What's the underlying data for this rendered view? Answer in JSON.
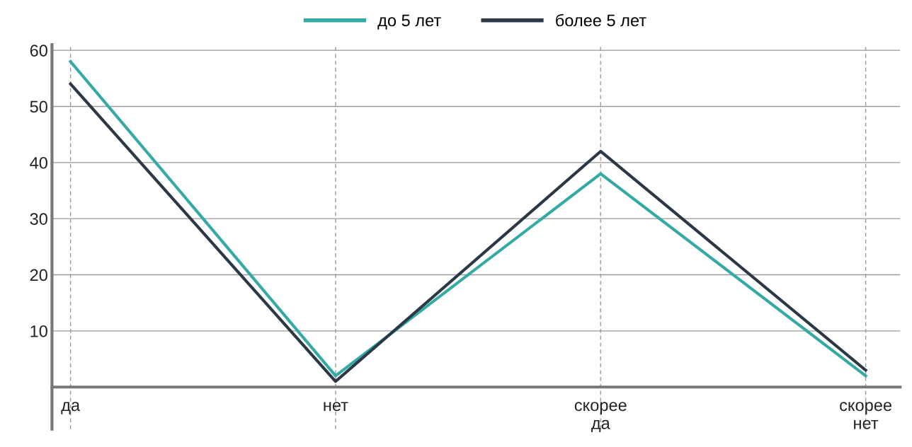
{
  "chart_data": {
    "type": "line",
    "categories": [
      "да",
      "нет",
      "скорее\nда",
      "скорее\nнет"
    ],
    "series": [
      {
        "name": "до 5 лет",
        "color": "#35aaa5",
        "values": [
          58,
          2,
          38,
          2
        ]
      },
      {
        "name": "более 5 лет",
        "color": "#2b3845",
        "values": [
          54,
          1,
          42,
          3
        ]
      }
    ],
    "ylim": [
      -7.5,
      61
    ],
    "yticks": [
      10,
      20,
      30,
      40,
      50,
      60
    ],
    "grid": true,
    "legend": "top",
    "marker": "none",
    "line_style": "solid"
  }
}
